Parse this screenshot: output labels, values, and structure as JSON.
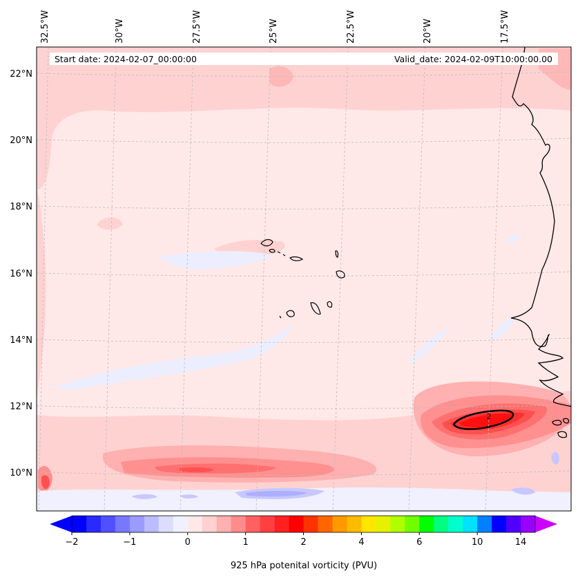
{
  "map": {
    "start_label": "Start date: 2024-02-07_00:00:00",
    "valid_label": "Valid_date: 2024-02-09T10:00:00.00",
    "lon_labels": [
      "32.5°W",
      "30°W",
      "27.5°W",
      "25°W",
      "22.5°W",
      "20°W",
      "17.5°W"
    ],
    "lat_labels": [
      "22°N",
      "20°N",
      "18°N",
      "16°N",
      "14°N",
      "12°N",
      "10°N"
    ],
    "contour_label": "2",
    "region": "Eastern tropical Atlantic: Cape Verde Islands and West African coast"
  },
  "colorbar": {
    "label": "925 hPa potenital vorticity (PVU)",
    "ticks": [
      "−2",
      "−1",
      "0",
      "1",
      "2",
      "4",
      "6",
      "10",
      "14"
    ],
    "colors": [
      "#0000ff",
      "#2a2aff",
      "#5050ff",
      "#7878ff",
      "#9a9aff",
      "#bbbbff",
      "#dcdcff",
      "#f0f0ff",
      "#ffe8e8",
      "#ffd0d0",
      "#ffb0b0",
      "#ff8c8c",
      "#ff6060",
      "#ff4040",
      "#ff2020",
      "#ff0000",
      "#ff3300",
      "#ff6600",
      "#ff9900",
      "#ffbb00",
      "#ffe600",
      "#e6f000",
      "#b0ff00",
      "#70ff00",
      "#00ff00",
      "#00ff80",
      "#00ffcc",
      "#00e0ff",
      "#0080ff",
      "#0000ff",
      "#5000ff",
      "#9900ff"
    ],
    "extend_low_color": "#0000ff",
    "extend_high_color": "#cc00ff"
  }
}
